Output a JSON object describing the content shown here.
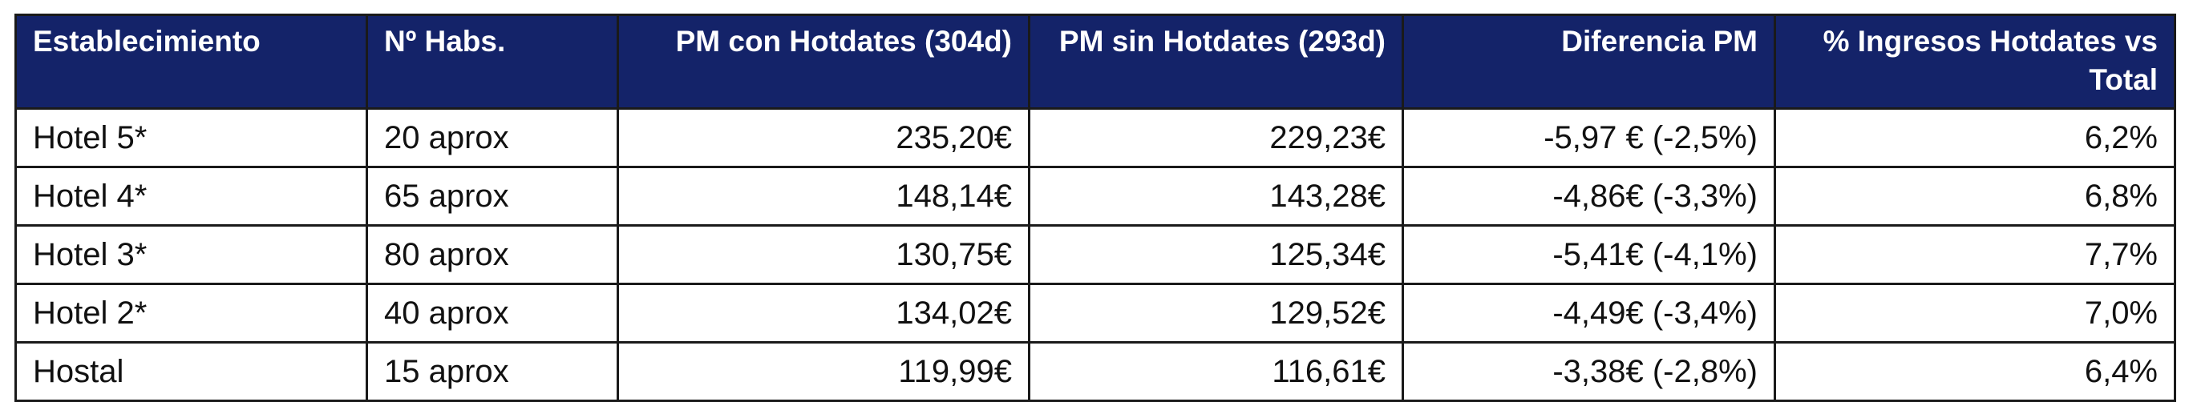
{
  "headers": [
    {
      "label": "Establecimiento",
      "align": "left"
    },
    {
      "label": "Nº Habs.",
      "align": "left"
    },
    {
      "label": "PM con Hotdates (304d)",
      "align": "right"
    },
    {
      "label": "PM sin Hotdates (293d)",
      "align": "right"
    },
    {
      "label": "Diferencia PM",
      "align": "right"
    },
    {
      "label": "% Ingresos Hotdates vs Total",
      "align": "right"
    }
  ],
  "rows": [
    [
      "Hotel 5*",
      "20 aprox",
      "235,20€",
      "229,23€",
      "-5,97 € (-2,5%)",
      "6,2%"
    ],
    [
      "Hotel 4*",
      "65 aprox",
      "148,14€",
      "143,28€",
      "-4,86€ (-3,3%)",
      "6,8%"
    ],
    [
      "Hotel 3*",
      "80 aprox",
      "130,75€",
      "125,34€",
      "-5,41€ (-4,1%)",
      "7,7%"
    ],
    [
      "Hotel 2*",
      "40 aprox",
      "134,02€",
      "129,52€",
      "-4,49€ (-3,4%)",
      "7,0%"
    ],
    [
      "Hostal",
      "15 aprox",
      "119,99€",
      "116,61€",
      "-3,38€ (-2,8%)",
      "6,4%"
    ]
  ],
  "colors": {
    "header_bg": "#142369",
    "header_text": "#ffffff",
    "border": "#1a1a1a",
    "body_text": "#111111"
  }
}
